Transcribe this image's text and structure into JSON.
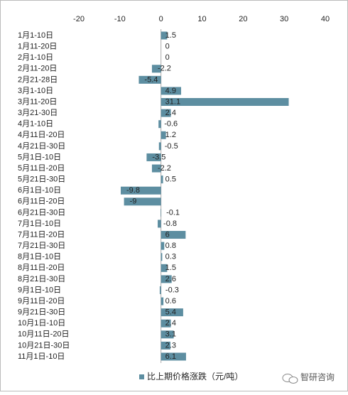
{
  "chart_data": {
    "type": "bar",
    "orientation": "horizontal",
    "categories": [
      "1月1-10日",
      "1月11-20日",
      "2月1-10日",
      "2月11-20日",
      "2月21-28日",
      "3月1-10日",
      "3月11-20日",
      "3月21-30日",
      "4月1-10日",
      "4月11日-20日",
      "4月21日-30日",
      "5月1日-10日",
      "5月11日-20日",
      "5月21日-30日",
      "6月1日-10日",
      "6月11日-20日",
      "6月21日-30日",
      "7月1日-10日",
      "7月11日-20日",
      "7月21日-30日",
      "8月1日-10日",
      "8月11日-20日",
      "8月21日-30日",
      "9月1日-10日",
      "9月11日-20日",
      "9月21日-30日",
      "10月1日-10日",
      "10月11日-20日",
      "10月21日-30日",
      "11月1日-10日"
    ],
    "series": [
      {
        "name": "比上期价格涨跌（元/吨）",
        "color": "#5d8ea1",
        "values": [
          1.5,
          0,
          0,
          -2.2,
          -5.4,
          4.9,
          31.1,
          2.4,
          -0.6,
          1.2,
          -0.5,
          -3.5,
          -2.2,
          0.5,
          -9.8,
          -9,
          -0.1,
          -0.8,
          6,
          0.8,
          0.3,
          1.5,
          2.6,
          -0.3,
          0.6,
          5.4,
          2.4,
          3.1,
          2.3,
          6.1
        ]
      }
    ],
    "xlim": [
      -20,
      40
    ],
    "xticks": [
      -20,
      -10,
      0,
      10,
      20,
      30,
      40
    ],
    "legend": "bottom",
    "watermark": "智研咨询"
  }
}
